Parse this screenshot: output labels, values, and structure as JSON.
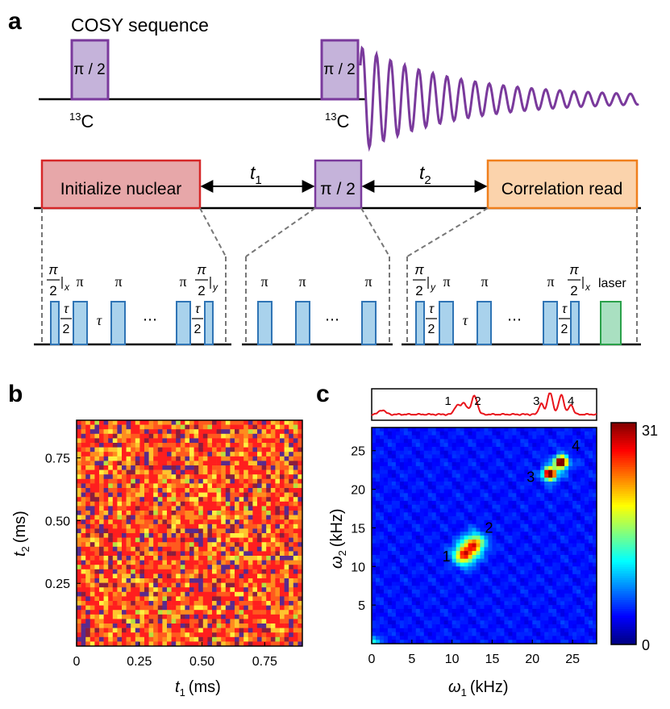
{
  "panels": {
    "a": "a",
    "b": "b",
    "c": "c"
  },
  "sequence": {
    "title": "COSY sequence",
    "pulse_label": "π / 2",
    "nucleus_mass": "13",
    "nucleus_symbol": "C",
    "blocks": {
      "init": "Initialize nuclear",
      "middle": "π / 2",
      "read": "Correlation read"
    },
    "delays": {
      "t1_var": "t",
      "t1_sub": "1",
      "t2_var": "t",
      "t2_sub": "2"
    },
    "sub_sequences": {
      "pi": "π",
      "ellipsis": "⋯",
      "tau": "τ",
      "half_pi_num": "π",
      "half_pi_den": "2",
      "axis_x": "x",
      "axis_y": "y",
      "laser": "laser"
    },
    "colors": {
      "pulse_fill": "#C5B3DA",
      "pulse_stroke": "#7A3A9C",
      "fid": "#7A3A9C",
      "init_fill": "#E7A7A9",
      "init_stroke": "#D62728",
      "read_fill": "#FBD3AC",
      "read_stroke": "#F07F1C",
      "small_pulse_fill": "#A9D2EC",
      "small_pulse_stroke": "#2F74B5",
      "laser_fill": "#A9E0C1",
      "laser_stroke": "#2AA14A"
    }
  },
  "chart_data": [
    {
      "type": "heatmap",
      "panel": "b",
      "x": {
        "var": "t",
        "sub": "1",
        "unit": "(ms)",
        "lim": [
          0,
          0.9
        ],
        "ticks": [
          0,
          0.25,
          0.5,
          0.75
        ],
        "tick_labels": [
          "0",
          "0.25",
          "0.50",
          "0.75"
        ]
      },
      "y": {
        "var": "t",
        "sub": "2",
        "unit": "(ms)",
        "lim": [
          0,
          0.9
        ],
        "ticks": [
          0.25,
          0.5,
          0.75
        ],
        "tick_labels": [
          "0.25",
          "0.50",
          "0.75"
        ]
      },
      "grid": [
        50,
        50
      ],
      "colors": [
        "#FF1E1E",
        "#FF5A1E",
        "#FF8C1E",
        "#FFC42E",
        "#FFF040",
        "#B8E040",
        "#5A2A8C",
        "#8B1E3C"
      ]
    },
    {
      "type": "heatmap",
      "panel": "c",
      "x": {
        "var": "ω",
        "sub": "1",
        "unit": "(kHz)",
        "lim": [
          0,
          28
        ],
        "ticks": [
          0,
          5,
          10,
          15,
          20,
          25
        ],
        "tick_labels": [
          "0",
          "5",
          "10",
          "15",
          "20",
          "25"
        ]
      },
      "y": {
        "var": "ω",
        "sub": "2",
        "unit": "(kHz)",
        "lim": [
          0,
          28
        ],
        "ticks": [
          5,
          10,
          15,
          20,
          25
        ],
        "tick_labels": [
          "5",
          "10",
          "15",
          "20",
          "25"
        ]
      },
      "peaks": [
        {
          "label": "1",
          "x": 11.5,
          "y": 11.5,
          "amp": 0.62
        },
        {
          "label": "2",
          "x": 12.8,
          "y": 12.9,
          "amp": 0.58
        },
        {
          "label": "3",
          "x": 22.2,
          "y": 22.0,
          "amp": 1.0
        },
        {
          "label": "4",
          "x": 23.6,
          "y": 23.5,
          "amp": 1.0
        }
      ],
      "colorbar": {
        "min": 0,
        "max": 31,
        "min_label": "0",
        "max_label": "31"
      },
      "projection": {
        "color": "#E8141B",
        "labels": [
          {
            "label": "1",
            "x": 9.5
          },
          {
            "label": "2",
            "x": 13.2
          },
          {
            "label": "3",
            "x": 20.5
          },
          {
            "label": "4",
            "x": 24.8
          }
        ]
      }
    }
  ]
}
